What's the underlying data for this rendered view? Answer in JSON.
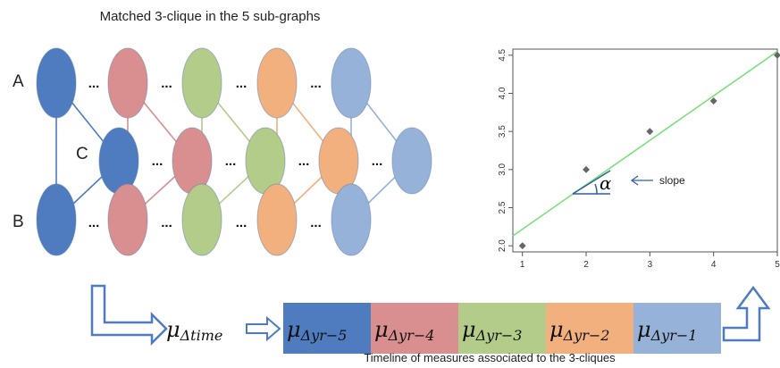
{
  "diagram": {
    "title": "Matched 3-clique in the 5 sub-graphs",
    "caption": "Timeline of measures associated to the 3-cliques",
    "node_labels": {
      "a": "A",
      "b": "B",
      "c": "C"
    },
    "ellipsis": "...",
    "subgraph_colors": [
      "#4f7bbf",
      "#d98f8f",
      "#b3cc8a",
      "#f2b07e",
      "#97b2d8"
    ],
    "mu_time": {
      "main": "μ",
      "sub": "Δtime"
    },
    "timeline": [
      {
        "main": "μ",
        "sub": "Δyr−5",
        "color": "#4f7bbf"
      },
      {
        "main": "μ",
        "sub": "Δyr−4",
        "color": "#d98f8f"
      },
      {
        "main": "μ",
        "sub": "Δyr−3",
        "color": "#b3cc8a"
      },
      {
        "main": "μ",
        "sub": "Δyr−2",
        "color": "#f2b07e"
      },
      {
        "main": "μ",
        "sub": "Δyr−1",
        "color": "#97b2d8"
      }
    ],
    "arrow_color": "#4f7bbf"
  },
  "chart_data": {
    "type": "scatter",
    "x": [
      1,
      2,
      3,
      4,
      5
    ],
    "y": [
      2.0,
      3.0,
      3.5,
      3.9,
      4.5
    ],
    "xlim": [
      0.85,
      5.0
    ],
    "ylim": [
      1.92,
      4.58
    ],
    "xticks": [
      "1",
      "2",
      "3",
      "4",
      "5"
    ],
    "yticks": [
      "2.0",
      "2.5",
      "3.0",
      "3.5",
      "4.0",
      "4.5"
    ],
    "trendline": {
      "x": [
        0.85,
        5.0
      ],
      "y": [
        2.13,
        4.55
      ],
      "color": "#7fe07f"
    },
    "point_color": "#666666",
    "slope_symbol": "α",
    "slope_label": "slope",
    "grid": false
  }
}
